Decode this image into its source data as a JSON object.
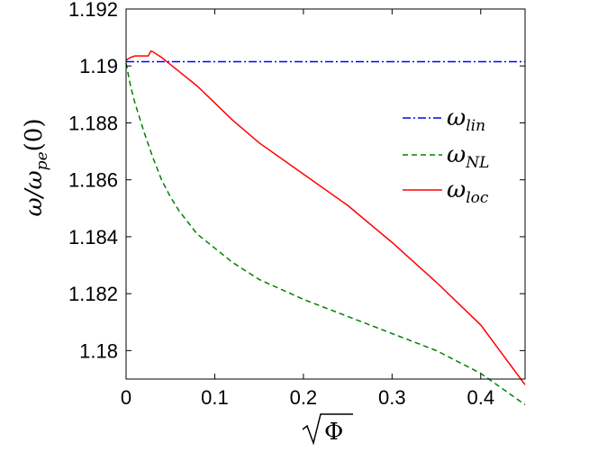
{
  "chart_data": {
    "type": "line",
    "xlabel": "√Φ",
    "ylabel": "ω/ω_pe(0)",
    "xlim": [
      0,
      0.45
    ],
    "ylim": [
      1.179,
      1.192
    ],
    "x_ticks": [
      "0",
      "0.1",
      "0.2",
      "0.3",
      "0.4"
    ],
    "y_ticks": [
      "1.18",
      "1.182",
      "1.184",
      "1.186",
      "1.188",
      "1.19",
      "1.192"
    ],
    "grid": false,
    "legend_position": "right",
    "series": [
      {
        "name": "ω_lin",
        "name_main": "ω",
        "name_sub": "lin",
        "color": "#0000ff",
        "dash": "dashdot",
        "x": [
          0,
          0.45
        ],
        "y": [
          1.19015,
          1.19015
        ]
      },
      {
        "name": "ω_NL",
        "name_main": "ω",
        "name_sub": "NL",
        "color": "#008000",
        "dash": "dashed",
        "x": [
          0,
          0.005,
          0.01,
          0.02,
          0.03,
          0.04,
          0.05,
          0.06,
          0.08,
          0.1,
          0.12,
          0.15,
          0.2,
          0.25,
          0.3,
          0.35,
          0.4,
          0.45
        ],
        "y": [
          1.1901,
          1.1893,
          1.1887,
          1.1877,
          1.1868,
          1.186,
          1.1854,
          1.1849,
          1.1841,
          1.1836,
          1.1831,
          1.1825,
          1.1818,
          1.1812,
          1.1806,
          1.18,
          1.1792,
          1.1781
        ]
      },
      {
        "name": "ω_loc",
        "name_main": "ω",
        "name_sub": "loc",
        "color": "#ff0000",
        "dash": "solid",
        "x": [
          0,
          0.005,
          0.01,
          0.025,
          0.028,
          0.03,
          0.04,
          0.05,
          0.06,
          0.08,
          0.1,
          0.12,
          0.15,
          0.2,
          0.25,
          0.3,
          0.35,
          0.4,
          0.45
        ],
        "y": [
          1.1902,
          1.1903,
          1.19035,
          1.19035,
          1.19052,
          1.1905,
          1.1903,
          1.19005,
          1.1898,
          1.1893,
          1.1887,
          1.1881,
          1.1873,
          1.1862,
          1.1851,
          1.1838,
          1.1824,
          1.1809,
          1.1788
        ]
      }
    ]
  }
}
